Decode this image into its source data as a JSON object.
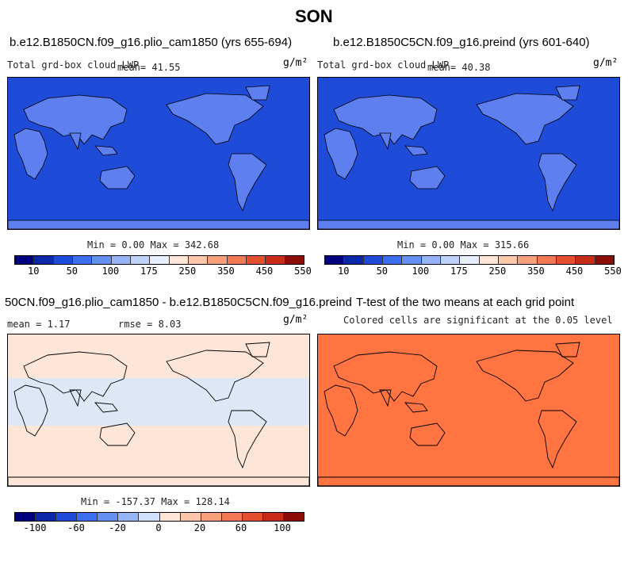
{
  "title": "SON",
  "panels": [
    {
      "title": "b.e12.B1850CN.f09_g16.plio_cam1850 (yrs 655-694)",
      "variable": "Total grd-box cloud LWP",
      "mean_text": "mean=  41.55",
      "units": "g/m²",
      "minmax_text": "Min =   0.00 Max = 342.68",
      "colorbar_labels": [
        "10",
        "50",
        "100",
        "175",
        "250",
        "350",
        "450",
        "550"
      ],
      "fill_color": "#1e4bd8"
    },
    {
      "title": "b.e12.B1850C5CN.f09_g16.preind (yrs 601-640)",
      "variable": "Total grd-box cloud LWP",
      "mean_text": "mean=  40.38",
      "units": "g/m²",
      "minmax_text": "Min =   0.00 Max = 315.66",
      "colorbar_labels": [
        "10",
        "50",
        "100",
        "175",
        "250",
        "350",
        "450",
        "550"
      ],
      "fill_color": "#1e4bd8"
    },
    {
      "title": "50CN.f09_g16.plio_cam1850 - b.e12.B1850C5CN.f09_g16.preind",
      "mean_text": "mean =   1.17",
      "rmse_text": "rmse =   8.03",
      "units": "g/m²",
      "minmax_text": "Min = -157.37 Max = 128.14",
      "colorbar_labels": [
        "-100",
        "-60",
        "-20",
        "0",
        "20",
        "60",
        "100"
      ],
      "fill_color": "#fde6d8"
    },
    {
      "title": "T-test of the two means at each grid point",
      "subtitle": "Colored cells are significant at the 0.05 level",
      "fill_color": "#ff7440"
    }
  ],
  "colorbars": {
    "absolute": [
      "#00007f",
      "#0a28a8",
      "#1e4bd8",
      "#3c6ef0",
      "#6490f4",
      "#96b4f8",
      "#bed2fa",
      "#e6eefc",
      "#fde6d8",
      "#fcc6a8",
      "#f8a07a",
      "#f27a52",
      "#e4502e",
      "#c82c18",
      "#8c0c08"
    ],
    "difference": [
      "#00007f",
      "#0a28a8",
      "#1e4bd8",
      "#3c6ef0",
      "#6490f4",
      "#96b4f8",
      "#cfe0fc",
      "#fde6d8",
      "#fcc6a8",
      "#f8a07a",
      "#f27a52",
      "#e4502e",
      "#c82c18",
      "#8c0c08"
    ]
  }
}
